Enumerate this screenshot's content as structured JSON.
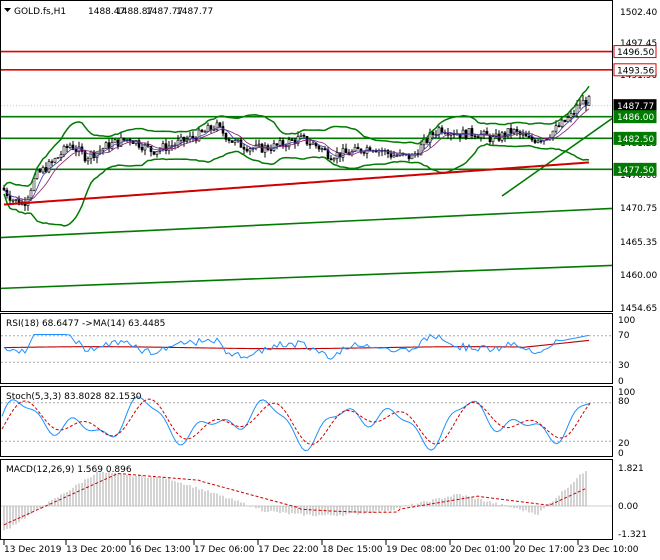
{
  "main": {
    "symbol": "GOLD.fs,H1",
    "ohlc": [
      "1488.47",
      "1488.87",
      "1487.77",
      "1487.77"
    ],
    "y_range": [
      1454.0,
      1504.0
    ],
    "y_ticks": [
      "1502.40",
      "1497.45",
      "1491.90",
      "1481.25",
      "1476.00",
      "1470.75",
      "1465.35",
      "1460.00",
      "1454.65"
    ],
    "price_tags": [
      {
        "label": "1496.50",
        "value": 1496.5,
        "style": "red"
      },
      {
        "label": "1493.56",
        "value": 1493.56,
        "style": "red"
      },
      {
        "label": "1487.77",
        "value": 1487.77,
        "style": "dark"
      },
      {
        "label": "1486.00",
        "value": 1486.0,
        "style": "green"
      },
      {
        "label": "1482.50",
        "value": 1482.5,
        "style": "green"
      },
      {
        "label": "1477.50",
        "value": 1477.5,
        "style": "green"
      }
    ],
    "horizontal_levels": [
      {
        "value": 1496.5,
        "color": "#e00000"
      },
      {
        "value": 1493.56,
        "color": "#e00000"
      },
      {
        "value": 1486.0,
        "color": "#007a00"
      },
      {
        "value": 1482.5,
        "color": "#007a00"
      },
      {
        "value": 1477.5,
        "color": "#007a00"
      }
    ],
    "trend_lines": [
      {
        "from": [
          0,
          1466.5
        ],
        "to": [
          1,
          1471.2
        ],
        "color": "#007a00"
      },
      {
        "from": [
          0,
          1458.3
        ],
        "to": [
          1,
          1462.0
        ],
        "color": "#007a00"
      },
      {
        "from": [
          0.82,
          1473.2
        ],
        "to": [
          1,
          1485.7
        ],
        "color": "#007a00"
      }
    ]
  },
  "rsi": {
    "label": "RSI(18) 68.6477  ->MA(14) 63.4485",
    "y_ticks": [
      "100",
      "70",
      "30",
      "0"
    ]
  },
  "stoch": {
    "label": "Stoch(5,3,3) 83.8028 82.1530",
    "y_ticks": [
      "100",
      "80",
      "20",
      "0"
    ]
  },
  "macd": {
    "label": "MACD(12,26,9) 1.569 0.896",
    "y_ticks": [
      "1.821",
      "0.00",
      "-1.321"
    ]
  },
  "time_axis": [
    "13 Dec 2019",
    "13 Dec 20:00",
    "16 Dec 13:00",
    "17 Dec 06:00",
    "17 Dec 22:00",
    "18 Dec 15:00",
    "19 Dec 08:00",
    "20 Dec 01:00",
    "20 Dec 17:00",
    "23 Dec 10:00"
  ],
  "colors": {
    "candle_up": "#000000",
    "candle_down": "#000000",
    "ma_red": "#d00000",
    "bollinger": "#007a00",
    "level_red": "#e00000",
    "level_green": "#007a00",
    "rsi_line": "#1e90ff",
    "rsi_ma": "#c00000",
    "stoch_main": "#1e90ff",
    "stoch_signal": "#d00000",
    "macd_hist": "#a8a8a8",
    "macd_signal": "#d00000"
  }
}
